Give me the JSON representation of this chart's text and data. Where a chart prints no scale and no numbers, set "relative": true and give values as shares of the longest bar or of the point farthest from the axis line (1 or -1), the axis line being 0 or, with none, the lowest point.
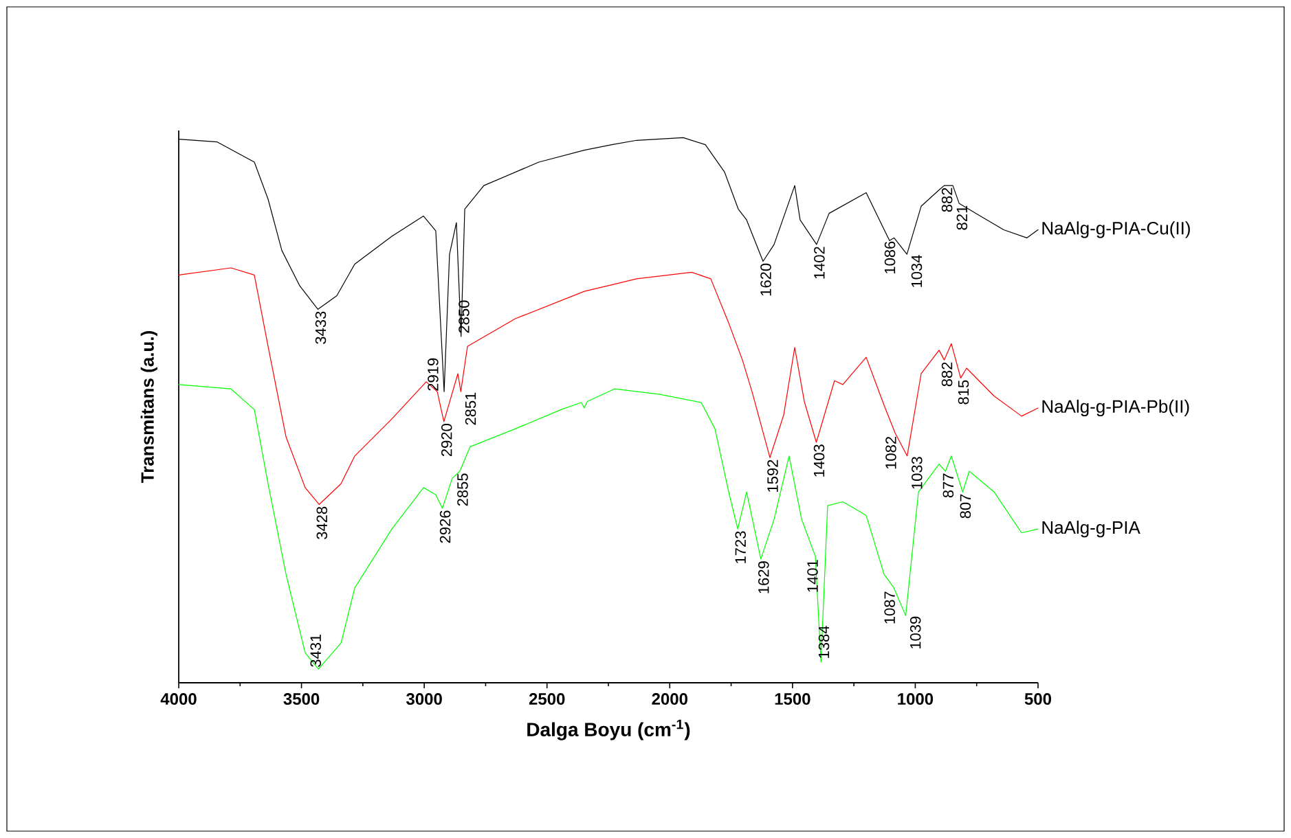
{
  "chart_data": {
    "type": "line",
    "relative": true,
    "xlabel": "Dalga Boyu (cm$^{-1}$)",
    "ylabel": "Transmitans (a.u.)",
    "xlim": [
      4000,
      500
    ],
    "xticks": [
      4000,
      3500,
      3000,
      2500,
      2000,
      1500,
      1000,
      500
    ],
    "marker": "none",
    "line_style": "solid",
    "series": [
      {
        "name": "NaAlg-g-PIA-Cu(II)",
        "color": "#000000",
        "x": [
          4000,
          3843,
          3692,
          3636,
          3580,
          3507,
          3433,
          3356,
          3283,
          3132,
          3003,
          2953,
          2919,
          2897,
          2869,
          2850,
          2835,
          2757,
          2533,
          2348,
          2236,
          2135,
          1945,
          1855,
          1777,
          1721,
          1687,
          1620,
          1575,
          1491,
          1469,
          1402,
          1351,
          1200,
          1105,
          1086,
          1034,
          976,
          903,
          882,
          847,
          821,
          735,
          640,
          545,
          500
        ],
        "values": [
          0.997,
          0.992,
          0.955,
          0.887,
          0.793,
          0.728,
          0.685,
          0.71,
          0.768,
          0.819,
          0.856,
          0.829,
          0.534,
          0.786,
          0.844,
          0.635,
          0.869,
          0.912,
          0.955,
          0.977,
          0.987,
          0.995,
          1.0,
          0.987,
          0.937,
          0.869,
          0.849,
          0.773,
          0.804,
          0.912,
          0.849,
          0.804,
          0.861,
          0.899,
          0.811,
          0.816,
          0.786,
          0.874,
          0.904,
          0.912,
          0.912,
          0.879,
          0.856,
          0.831,
          0.816,
          0.831
        ]
      },
      {
        "name": "NaAlg-g-PIA-Pb(II)",
        "color": "#ff0000",
        "x": [
          4000,
          3787,
          3692,
          3636,
          3563,
          3485,
          3428,
          3339,
          3283,
          3132,
          2992,
          2947,
          2920,
          2863,
          2851,
          2824,
          2628,
          2348,
          2236,
          2135,
          1911,
          1833,
          1760,
          1704,
          1665,
          1592,
          1536,
          1491,
          1452,
          1403,
          1329,
          1295,
          1200,
          1127,
          1082,
          1033,
          976,
          903,
          882,
          853,
          815,
          791,
          679,
          567,
          500
        ],
        "values": [
          0.748,
          0.761,
          0.748,
          0.617,
          0.451,
          0.358,
          0.327,
          0.365,
          0.416,
          0.484,
          0.552,
          0.534,
          0.479,
          0.567,
          0.534,
          0.617,
          0.668,
          0.718,
          0.73,
          0.741,
          0.753,
          0.741,
          0.66,
          0.592,
          0.534,
          0.413,
          0.491,
          0.615,
          0.516,
          0.441,
          0.554,
          0.547,
          0.597,
          0.509,
          0.458,
          0.416,
          0.567,
          0.61,
          0.592,
          0.622,
          0.559,
          0.577,
          0.526,
          0.489,
          0.504
        ]
      },
      {
        "name": "NaAlg-g-PIA",
        "color": "#00ff00",
        "x": [
          4000,
          3787,
          3692,
          3636,
          3563,
          3485,
          3431,
          3339,
          3283,
          3132,
          3003,
          2953,
          2926,
          2886,
          2855,
          2813,
          2628,
          2443,
          2360,
          2348,
          2336,
          2225,
          2040,
          1872,
          1816,
          1760,
          1723,
          1687,
          1629,
          1575,
          1514,
          1463,
          1407,
          1384,
          1357,
          1295,
          1200,
          1127,
          1087,
          1039,
          987,
          903,
          877,
          853,
          807,
          780,
          679,
          567,
          500
        ],
        "values": [
          0.547,
          0.539,
          0.501,
          0.365,
          0.199,
          0.055,
          0.025,
          0.073,
          0.174,
          0.282,
          0.358,
          0.345,
          0.32,
          0.375,
          0.388,
          0.433,
          0.466,
          0.501,
          0.514,
          0.504,
          0.516,
          0.539,
          0.529,
          0.514,
          0.466,
          0.35,
          0.282,
          0.35,
          0.227,
          0.3,
          0.416,
          0.3,
          0.232,
          0.038,
          0.325,
          0.332,
          0.307,
          0.199,
          0.174,
          0.123,
          0.35,
          0.401,
          0.388,
          0.416,
          0.35,
          0.388,
          0.35,
          0.275,
          0.282
        ]
      }
    ],
    "annotations": [
      {
        "text": "3433",
        "x": 3433,
        "y": 0.685
      },
      {
        "text": "2919",
        "x": 2919,
        "y": 0.534
      },
      {
        "text": "2850",
        "x": 2850,
        "y": 0.635
      },
      {
        "text": "1620",
        "x": 1620,
        "y": 0.773
      },
      {
        "text": "1402",
        "x": 1402,
        "y": 0.804
      },
      {
        "text": "1086",
        "x": 1086,
        "y": 0.816
      },
      {
        "text": "1034",
        "x": 1034,
        "y": 0.786
      },
      {
        "text": "882",
        "x": 882,
        "y": 0.912
      },
      {
        "text": "821",
        "x": 821,
        "y": 0.879
      },
      {
        "text": "3428",
        "x": 3428,
        "y": 0.327
      },
      {
        "text": "2920",
        "x": 2920,
        "y": 0.479
      },
      {
        "text": "2851",
        "x": 2851,
        "y": 0.534
      },
      {
        "text": "1592",
        "x": 1592,
        "y": 0.413
      },
      {
        "text": "1403",
        "x": 1403,
        "y": 0.441
      },
      {
        "text": "1082",
        "x": 1082,
        "y": 0.458
      },
      {
        "text": "1033",
        "x": 1033,
        "y": 0.416
      },
      {
        "text": "882",
        "x": 882,
        "y": 0.592
      },
      {
        "text": "815",
        "x": 815,
        "y": 0.559
      },
      {
        "text": "3431",
        "x": 3431,
        "y": 0.025
      },
      {
        "text": "2926",
        "x": 2926,
        "y": 0.32
      },
      {
        "text": "2855",
        "x": 2855,
        "y": 0.388
      },
      {
        "text": "1723",
        "x": 1723,
        "y": 0.282
      },
      {
        "text": "1629",
        "x": 1629,
        "y": 0.227
      },
      {
        "text": "1401",
        "x": 1401,
        "y": 0.232
      },
      {
        "text": "1384",
        "x": 1384,
        "y": 0.038
      },
      {
        "text": "1087",
        "x": 1087,
        "y": 0.174
      },
      {
        "text": "1039",
        "x": 1039,
        "y": 0.123
      },
      {
        "text": "877",
        "x": 877,
        "y": 0.388
      },
      {
        "text": "807",
        "x": 807,
        "y": 0.35
      }
    ]
  }
}
